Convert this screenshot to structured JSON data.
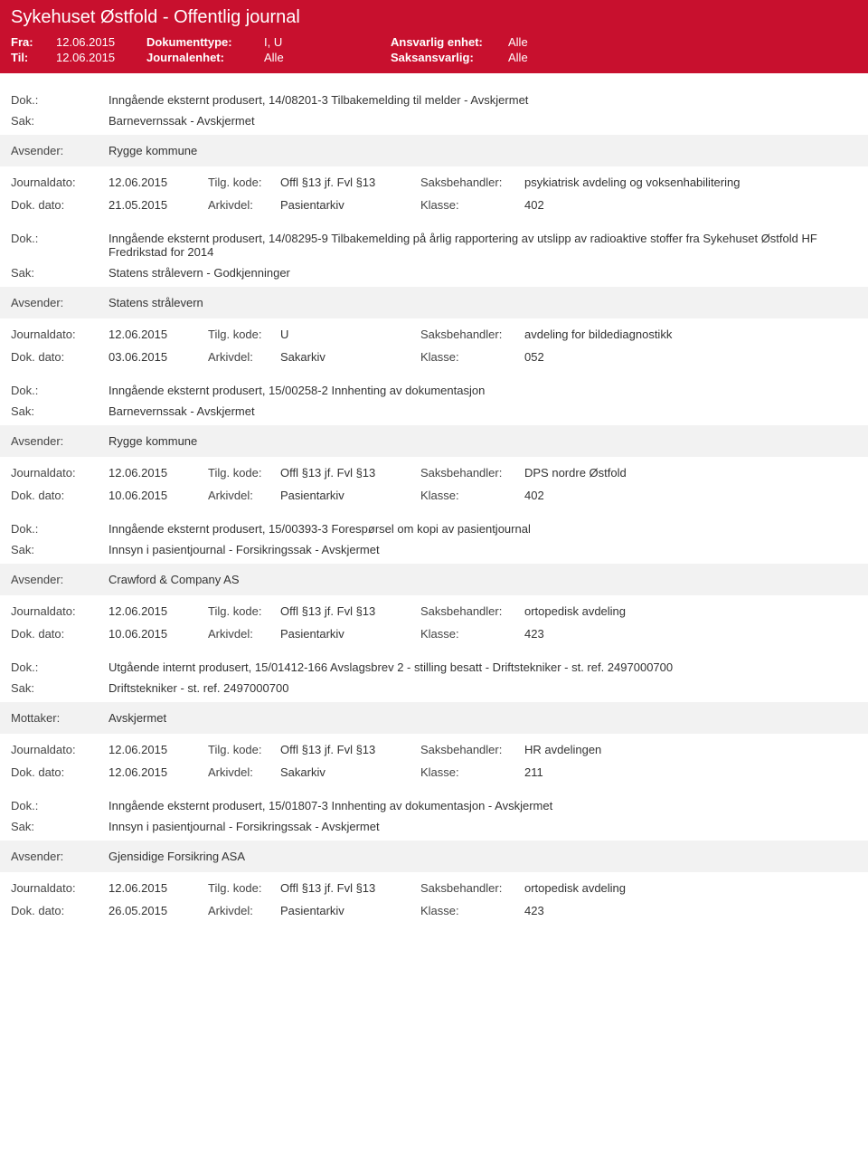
{
  "header": {
    "title": "Sykehuset Østfold - Offentlig journal",
    "fra_label": "Fra:",
    "fra": "12.06.2015",
    "til_label": "Til:",
    "til": "12.06.2015",
    "doktype_label": "Dokumenttype:",
    "doktype": "I, U",
    "journalenhet_label": "Journalenhet:",
    "journalenhet": "Alle",
    "ansvarlig_label": "Ansvarlig enhet:",
    "ansvarlig": "Alle",
    "saksansvarlig_label": "Saksansvarlig:",
    "saksansvarlig": "Alle"
  },
  "labels": {
    "dok": "Dok.:",
    "sak": "Sak:",
    "avsender": "Avsender:",
    "mottaker": "Mottaker:",
    "journaldato": "Journaldato:",
    "dokdato": "Dok. dato:",
    "tilgkode": "Tilg. kode:",
    "arkivdel": "Arkivdel:",
    "saksbehandler": "Saksbehandler:",
    "klasse": "Klasse:"
  },
  "entries": [
    {
      "dok": "Inngående eksternt produsert, 14/08201-3 Tilbakemelding til melder - Avskjermet",
      "sak": "Barnevernssak - Avskjermet",
      "party_label": "Avsender:",
      "party": "Rygge kommune",
      "journaldato": "12.06.2015",
      "tilgkode": "Offl §13 jf. Fvl §13",
      "saksbehandler": "psykiatrisk avdeling og voksenhabilitering",
      "dokdato": "21.05.2015",
      "arkivdel": "Pasientarkiv",
      "klasse": "402"
    },
    {
      "dok": "Inngående eksternt produsert, 14/08295-9 Tilbakemelding på årlig rapportering av utslipp av radioaktive stoffer fra Sykehuset Østfold HF Fredrikstad for 2014",
      "sak": "Statens strålevern - Godkjenninger",
      "party_label": "Avsender:",
      "party": "Statens strålevern",
      "journaldato": "12.06.2015",
      "tilgkode": "U",
      "saksbehandler": "avdeling for bildediagnostikk",
      "dokdato": "03.06.2015",
      "arkivdel": "Sakarkiv",
      "klasse": "052"
    },
    {
      "dok": "Inngående eksternt produsert, 15/00258-2 Innhenting av dokumentasjon",
      "sak": "Barnevernssak - Avskjermet",
      "party_label": "Avsender:",
      "party": "Rygge kommune",
      "journaldato": "12.06.2015",
      "tilgkode": "Offl §13 jf. Fvl §13",
      "saksbehandler": "DPS nordre Østfold",
      "dokdato": "10.06.2015",
      "arkivdel": "Pasientarkiv",
      "klasse": "402"
    },
    {
      "dok": "Inngående eksternt produsert, 15/00393-3 Forespørsel om kopi av pasientjournal",
      "sak": "Innsyn i pasientjournal - Forsikringssak - Avskjermet",
      "party_label": "Avsender:",
      "party": "Crawford & Company AS",
      "journaldato": "12.06.2015",
      "tilgkode": "Offl §13 jf. Fvl §13",
      "saksbehandler": "ortopedisk avdeling",
      "dokdato": "10.06.2015",
      "arkivdel": "Pasientarkiv",
      "klasse": "423"
    },
    {
      "dok": "Utgående internt produsert, 15/01412-166 Avslagsbrev 2 - stilling besatt - Driftstekniker  - st. ref. 2497000700",
      "sak": "Driftstekniker  - st. ref. 2497000700",
      "party_label": "Mottaker:",
      "party": "Avskjermet",
      "journaldato": "12.06.2015",
      "tilgkode": "Offl §13 jf. Fvl §13",
      "saksbehandler": "HR avdelingen",
      "dokdato": "12.06.2015",
      "arkivdel": "Sakarkiv",
      "klasse": "211"
    },
    {
      "dok": "Inngående eksternt produsert, 15/01807-3 Innhenting av dokumentasjon - Avskjermet",
      "sak": "Innsyn i pasientjournal - Forsikringssak - Avskjermet",
      "party_label": "Avsender:",
      "party": "Gjensidige Forsikring ASA",
      "journaldato": "12.06.2015",
      "tilgkode": "Offl §13 jf. Fvl §13",
      "saksbehandler": "ortopedisk avdeling",
      "dokdato": "26.05.2015",
      "arkivdel": "Pasientarkiv",
      "klasse": "423"
    }
  ],
  "colors": {
    "header_bg": "#c8102e",
    "gray_bg": "#f2f2f2"
  }
}
